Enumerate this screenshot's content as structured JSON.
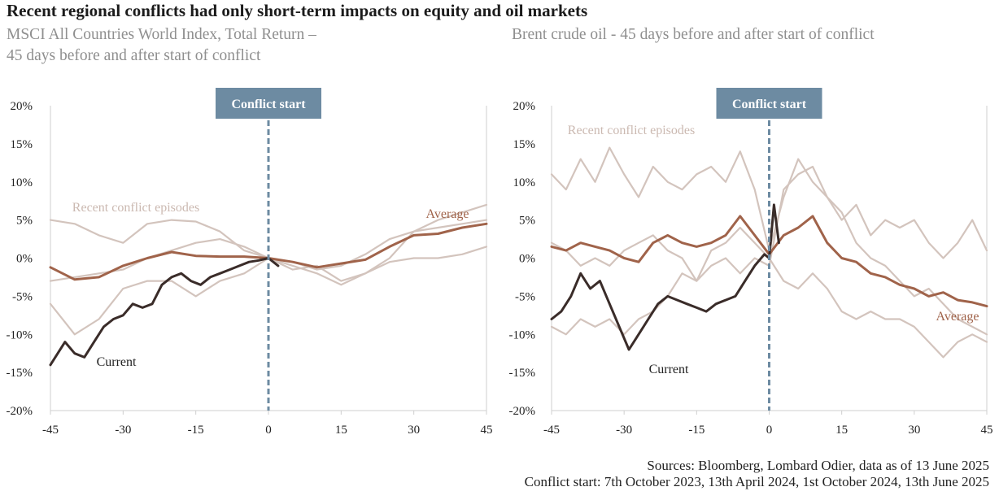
{
  "title": "Recent regional conflicts had only short-term impacts on equity and oil markets",
  "sources_line1": "Sources: Bloomberg, Lombard Odier, data as of 13 June 2025",
  "sources_line2": "Conflict start: 7th October 2023, 13th April 2024, 1st October 2024, 13th June 2025",
  "colors": {
    "episodes": "#d3c4bd",
    "average": "#a0634a",
    "current": "#3a2c29",
    "marker": "#6d8ba2",
    "axis": "#cfcfcf"
  },
  "chart_data": [
    {
      "type": "line",
      "subtitle": "MSCI All Countries World Index, Total Return –\n45 days before and after start of conflict",
      "xlim": [
        -45,
        45
      ],
      "xticks": [
        "-45",
        "-30",
        "-15",
        "0",
        "15",
        "30",
        "45"
      ],
      "ylim": [
        -20,
        20
      ],
      "yticks": [
        "-20%",
        "-15%",
        "-10%",
        "-5%",
        "0%",
        "5%",
        "10%",
        "15%",
        "20%"
      ],
      "marker": {
        "x": 0,
        "label": "Conflict start"
      },
      "annotations": {
        "episodes": "Recent conflict episodes",
        "average": "Average",
        "current": "Current"
      },
      "series": [
        {
          "role": "episodes",
          "x": [
            -45,
            -40,
            -35,
            -30,
            -25,
            -20,
            -15,
            -10,
            -5,
            0,
            5,
            10,
            15,
            20,
            25,
            30,
            35,
            40,
            45
          ],
          "values": [
            5,
            4.5,
            3,
            2,
            4.5,
            5,
            4.8,
            3.5,
            1,
            0,
            -0.5,
            -1.5,
            -1,
            0.5,
            2.5,
            3.5,
            5,
            6,
            7
          ]
        },
        {
          "role": "episodes",
          "x": [
            -45,
            -40,
            -35,
            -30,
            -25,
            -20,
            -15,
            -10,
            -5,
            0,
            5,
            10,
            15,
            20,
            25,
            30,
            35,
            40,
            45
          ],
          "values": [
            -3,
            -2.5,
            -2,
            -1.5,
            0,
            1,
            2,
            2.5,
            1.5,
            0,
            -1.5,
            -1,
            -3,
            -2,
            0,
            3.5,
            4,
            4.5,
            5
          ]
        },
        {
          "role": "episodes",
          "x": [
            -45,
            -40,
            -35,
            -30,
            -25,
            -20,
            -15,
            -10,
            -5,
            0,
            5,
            10,
            15,
            20,
            25,
            30,
            35,
            40,
            45
          ],
          "values": [
            -6,
            -10,
            -8,
            -4,
            -3,
            -3,
            -5,
            -3,
            -2,
            0,
            -1,
            -2,
            -3.5,
            -2,
            -0.5,
            0,
            0,
            0.5,
            1.5
          ]
        },
        {
          "role": "average",
          "x": [
            -45,
            -40,
            -35,
            -30,
            -25,
            -20,
            -15,
            -10,
            -5,
            0,
            5,
            10,
            15,
            20,
            25,
            30,
            35,
            40,
            45
          ],
          "values": [
            -1.2,
            -2.8,
            -2.5,
            -1,
            0,
            0.8,
            0.3,
            0.2,
            0.2,
            0,
            -0.5,
            -1.2,
            -0.7,
            -0.2,
            1.5,
            3,
            3.2,
            4,
            4.5
          ]
        },
        {
          "role": "current",
          "x": [
            -45,
            -42,
            -40,
            -38,
            -36,
            -34,
            -32,
            -30,
            -28,
            -26,
            -24,
            -22,
            -20,
            -18,
            -16,
            -14,
            -12,
            -10,
            -8,
            -6,
            -4,
            -2,
            0,
            2
          ],
          "values": [
            -14,
            -11,
            -12.5,
            -13,
            -11,
            -9,
            -8,
            -7.5,
            -6,
            -6.5,
            -6,
            -3.5,
            -2.5,
            -2,
            -3,
            -3.5,
            -2.5,
            -2,
            -1.5,
            -1,
            -0.5,
            -0.3,
            0,
            -1
          ]
        }
      ]
    },
    {
      "type": "line",
      "subtitle": "Brent crude oil - 45 days before and after start of conflict",
      "xlim": [
        -45,
        45
      ],
      "xticks": [
        "-45",
        "-30",
        "-15",
        "0",
        "15",
        "30",
        "45"
      ],
      "ylim": [
        -20,
        20
      ],
      "yticks": [
        "-20%",
        "-15%",
        "-10%",
        "-5%",
        "0%",
        "5%",
        "10%",
        "15%",
        "20%"
      ],
      "marker": {
        "x": 0,
        "label": "Conflict start"
      },
      "annotations": {
        "episodes": "Recent conflict episodes",
        "average": "Average",
        "current": "Current"
      },
      "series": [
        {
          "role": "episodes",
          "x": [
            -45,
            -42,
            -39,
            -36,
            -33,
            -30,
            -27,
            -24,
            -21,
            -18,
            -15,
            -12,
            -9,
            -6,
            -3,
            0,
            3,
            6,
            9,
            12,
            15,
            18,
            21,
            24,
            27,
            30,
            33,
            36,
            39,
            42,
            45
          ],
          "values": [
            11,
            9,
            13,
            10,
            14.5,
            11,
            8,
            12,
            10,
            9,
            11,
            12,
            10,
            14,
            9,
            1,
            8,
            13,
            10,
            8,
            5,
            7,
            3,
            5,
            4,
            5,
            2,
            0,
            2,
            5,
            1
          ]
        },
        {
          "role": "episodes",
          "x": [
            -45,
            -42,
            -39,
            -36,
            -33,
            -30,
            -27,
            -24,
            -21,
            -18,
            -15,
            -12,
            -9,
            -6,
            -3,
            0,
            3,
            6,
            9,
            12,
            15,
            18,
            21,
            24,
            27,
            30,
            33,
            36,
            39,
            42,
            45
          ],
          "values": [
            2,
            1,
            -1,
            0,
            -1,
            1,
            2,
            3,
            1,
            0,
            -3,
            1,
            2,
            4,
            2,
            0,
            -3,
            -4,
            -2,
            -4,
            -7,
            -8,
            -7,
            -8,
            -8,
            -9,
            -11,
            -13,
            -11,
            -10,
            -11
          ]
        },
        {
          "role": "episodes",
          "x": [
            -45,
            -42,
            -39,
            -36,
            -33,
            -30,
            -27,
            -24,
            -21,
            -18,
            -15,
            -12,
            -9,
            -6,
            -3,
            0,
            3,
            6,
            9,
            12,
            15,
            18,
            21,
            24,
            27,
            30,
            33,
            36,
            39,
            42,
            45
          ],
          "values": [
            -9,
            -10,
            -8,
            -9,
            -8,
            -10,
            -8,
            -7,
            -5,
            -2,
            -3,
            -1,
            0,
            -2,
            0,
            -1,
            9,
            11,
            12,
            8,
            6,
            2,
            0,
            -1,
            -3,
            -5,
            -4,
            -6,
            -8,
            -9,
            -10
          ]
        },
        {
          "role": "average",
          "x": [
            -45,
            -42,
            -39,
            -36,
            -33,
            -30,
            -27,
            -24,
            -21,
            -18,
            -15,
            -12,
            -9,
            -6,
            -3,
            0,
            3,
            6,
            9,
            12,
            15,
            18,
            21,
            24,
            27,
            30,
            33,
            36,
            39,
            42,
            45
          ],
          "values": [
            1.5,
            1,
            2,
            1.5,
            1,
            0,
            -0.5,
            2,
            3,
            2,
            1.5,
            2,
            3,
            5.5,
            3,
            0.5,
            3,
            4,
            5.5,
            2,
            0,
            -0.5,
            -2,
            -2.5,
            -3.5,
            -4,
            -5,
            -4.5,
            -5.5,
            -5.8,
            -6.3
          ]
        },
        {
          "role": "current",
          "x": [
            -45,
            -43,
            -41,
            -39,
            -37,
            -35,
            -33,
            -31,
            -29,
            -27,
            -25,
            -23,
            -21,
            -19,
            -17,
            -15,
            -13,
            -11,
            -9,
            -7,
            -5,
            -3,
            -1,
            0,
            1,
            2
          ],
          "values": [
            -8,
            -7,
            -5,
            -2,
            -4,
            -3,
            -6,
            -9,
            -12,
            -10,
            -8,
            -6,
            -5,
            -5.5,
            -6,
            -6.5,
            -7,
            -6,
            -5.5,
            -5,
            -3,
            -1,
            0.5,
            0,
            7,
            2
          ]
        }
      ]
    }
  ]
}
